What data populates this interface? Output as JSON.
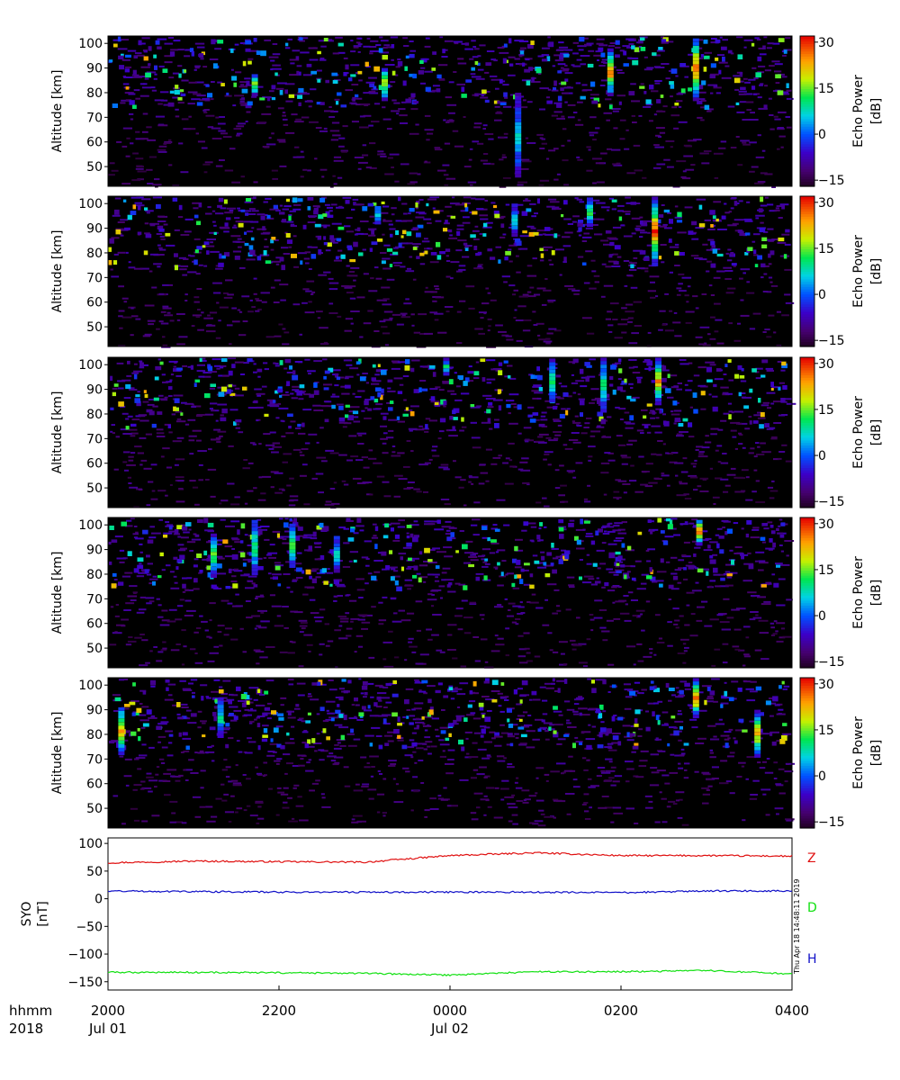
{
  "chart_data": [
    {
      "type": "heatmap",
      "panel": 1,
      "ylabel": "Altitude [km]",
      "yticks": [
        50,
        60,
        70,
        80,
        90,
        100
      ],
      "ylim": [
        42,
        103
      ],
      "colorbar": {
        "label_line1": "Echo Power",
        "label_line2": "[dB]",
        "ticks": [
          30,
          15,
          0,
          -15
        ],
        "range": [
          -17,
          32
        ]
      },
      "vertical_bursts": [
        {
          "t": 0.4,
          "y0": 78,
          "y1": 91,
          "peak": 20
        },
        {
          "t": 0.595,
          "y0": 47,
          "y1": 80,
          "peak": 5
        },
        {
          "t": 0.73,
          "y0": 80,
          "y1": 98,
          "peak": 28
        },
        {
          "t": 0.855,
          "y0": 78,
          "y1": 103,
          "peak": 30
        },
        {
          "t": 0.21,
          "y0": 80,
          "y1": 88,
          "peak": 18
        }
      ],
      "seed": 11
    },
    {
      "type": "heatmap",
      "panel": 2,
      "ylabel": "Altitude [km]",
      "yticks": [
        50,
        60,
        70,
        80,
        90,
        100
      ],
      "ylim": [
        42,
        103
      ],
      "colorbar": {
        "label_line1": "Echo Power",
        "label_line2": "[dB]",
        "ticks": [
          30,
          15,
          0,
          -15
        ],
        "range": [
          -17,
          32
        ]
      },
      "vertical_bursts": [
        {
          "t": 0.7,
          "y0": 92,
          "y1": 103,
          "peak": 14
        },
        {
          "t": 0.795,
          "y0": 76,
          "y1": 103,
          "peak": 30
        },
        {
          "t": 0.39,
          "y0": 93,
          "y1": 100,
          "peak": 8
        },
        {
          "t": 0.59,
          "y0": 88,
          "y1": 100,
          "peak": 6
        }
      ],
      "seed": 23
    },
    {
      "type": "heatmap",
      "panel": 3,
      "ylabel": "Altitude [km]",
      "yticks": [
        50,
        60,
        70,
        80,
        90,
        100
      ],
      "ylim": [
        42,
        103
      ],
      "colorbar": {
        "label_line1": "Echo Power",
        "label_line2": "[dB]",
        "ticks": [
          30,
          15,
          0,
          -15
        ],
        "range": [
          -17,
          32
        ]
      },
      "vertical_bursts": [
        {
          "t": 0.645,
          "y0": 86,
          "y1": 103,
          "peak": 12
        },
        {
          "t": 0.72,
          "y0": 82,
          "y1": 103,
          "peak": 12
        },
        {
          "t": 0.8,
          "y0": 85,
          "y1": 103,
          "peak": 24
        },
        {
          "t": 0.49,
          "y0": 97,
          "y1": 103,
          "peak": 10
        }
      ],
      "seed": 37
    },
    {
      "type": "heatmap",
      "panel": 4,
      "ylabel": "Altitude [km]",
      "yticks": [
        50,
        60,
        70,
        80,
        90,
        100
      ],
      "ylim": [
        42,
        103
      ],
      "colorbar": {
        "label_line1": "Echo Power",
        "label_line2": "[dB]",
        "ticks": [
          30,
          15,
          0,
          -15
        ],
        "range": [
          -17,
          32
        ]
      },
      "vertical_bursts": [
        {
          "t": 0.15,
          "y0": 80,
          "y1": 97,
          "peak": 16
        },
        {
          "t": 0.21,
          "y0": 81,
          "y1": 103,
          "peak": 12
        },
        {
          "t": 0.265,
          "y0": 84,
          "y1": 101,
          "peak": 14
        },
        {
          "t": 0.86,
          "y0": 93,
          "y1": 103,
          "peak": 30
        },
        {
          "t": 0.33,
          "y0": 82,
          "y1": 96,
          "peak": 8
        }
      ],
      "seed": 41
    },
    {
      "type": "heatmap",
      "panel": 5,
      "ylabel": "Altitude [km]",
      "yticks": [
        50,
        60,
        70,
        80,
        90,
        100
      ],
      "ylim": [
        42,
        103
      ],
      "colorbar": {
        "label_line1": "Echo Power",
        "label_line2": "[dB]",
        "ticks": [
          30,
          15,
          0,
          -15
        ],
        "range": [
          -17,
          32
        ]
      },
      "vertical_bursts": [
        {
          "t": 0.015,
          "y0": 73,
          "y1": 92,
          "peak": 24
        },
        {
          "t": 0.855,
          "y0": 88,
          "y1": 103,
          "peak": 30
        },
        {
          "t": 0.945,
          "y0": 72,
          "y1": 90,
          "peak": 24
        },
        {
          "t": 0.16,
          "y0": 80,
          "y1": 95,
          "peak": 10
        }
      ],
      "seed": 53
    },
    {
      "type": "line",
      "panel": 6,
      "ylabel_line1": "SYO",
      "ylabel_line2": "[nT]",
      "yticks": [
        100,
        50,
        0,
        -50,
        -100,
        -150
      ],
      "ylim": [
        -165,
        110
      ],
      "x": [
        "2000",
        "2100",
        "2200",
        "2300",
        "0000",
        "0100",
        "0200",
        "0300",
        "0400"
      ],
      "series": [
        {
          "name": "Z",
          "color": "#e01010",
          "values": [
            65,
            68,
            67,
            66,
            78,
            83,
            78,
            78,
            77
          ]
        },
        {
          "name": "D",
          "color": "#10e010",
          "values": [
            -133,
            -133,
            -134,
            -135,
            -138,
            -132,
            -132,
            -130,
            -136
          ]
        },
        {
          "name": "H",
          "color": "#1010c8",
          "values": [
            14,
            13,
            12,
            12,
            12,
            12,
            11,
            14,
            14
          ]
        }
      ],
      "timestamp": "Thu Apr 18 14:48:11 2019"
    }
  ],
  "xaxis": {
    "row1_label": "hhmm",
    "row2_label": "2018",
    "ticks": [
      {
        "hhmm": "2000",
        "date": "Jul 01"
      },
      {
        "hhmm": "2200",
        "date": ""
      },
      {
        "hhmm": "0000",
        "date": "Jul 02"
      },
      {
        "hhmm": "0200",
        "date": ""
      },
      {
        "hhmm": "0400",
        "date": ""
      }
    ]
  }
}
